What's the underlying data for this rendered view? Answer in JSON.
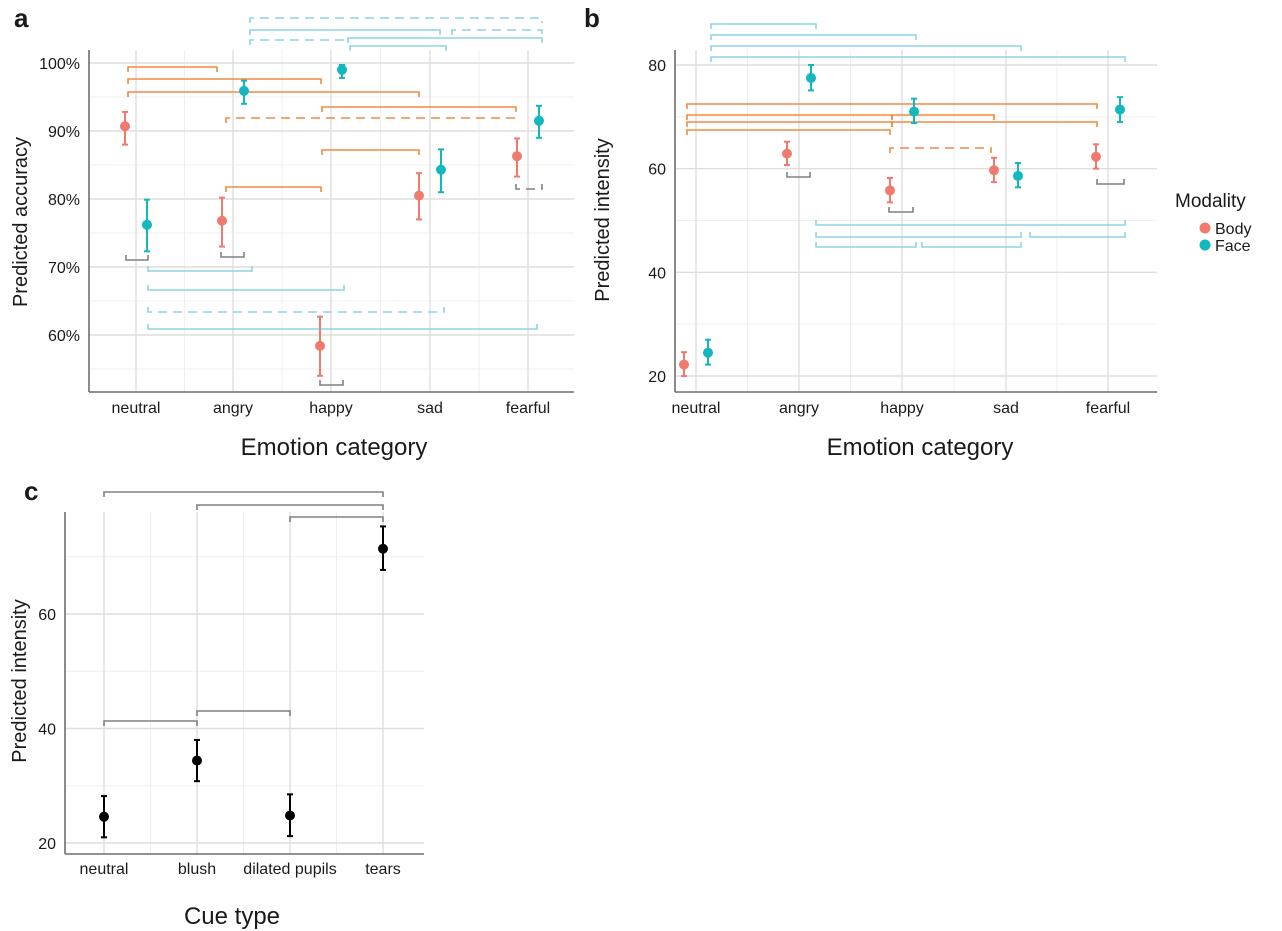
{
  "panels": {
    "a": {
      "label": "a"
    },
    "b": {
      "label": "b"
    },
    "c": {
      "label": "c"
    }
  },
  "legend": {
    "title": "Modality",
    "items": [
      {
        "label": "Body",
        "color": "#F07A6E"
      },
      {
        "label": "Face",
        "color": "#12B8BE"
      }
    ]
  },
  "colors": {
    "body": "#F07A6E",
    "face": "#12B8BE",
    "cue": "#000000",
    "bracket_body": "#F08A40",
    "bracket_face": "#8ED3E6",
    "bracket_within": "#808080"
  },
  "chart_data": [
    {
      "id": "a",
      "type": "scatter",
      "title": "",
      "xlabel": "Emotion category",
      "ylabel": "Predicted accuracy",
      "categories": [
        "neutral",
        "angry",
        "happy",
        "sad",
        "fearful"
      ],
      "ylim": [
        52,
        102
      ],
      "yticks": [
        60,
        70,
        80,
        90,
        100
      ],
      "ytick_labels": [
        "60%",
        "70%",
        "80%",
        "90%",
        "100%"
      ],
      "grid": true,
      "legend": "none",
      "series": [
        {
          "name": "Body",
          "values": [
            90.7,
            76.8,
            58.4,
            80.5,
            86.3
          ],
          "lower": [
            88.0,
            73.0,
            54.0,
            77.0,
            83.3
          ],
          "upper": [
            92.8,
            80.2,
            62.7,
            83.8,
            88.9
          ]
        },
        {
          "name": "Face",
          "values": [
            76.2,
            95.9,
            99.0,
            84.3,
            91.5
          ],
          "lower": [
            72.3,
            94.0,
            97.8,
            81.0,
            89.0
          ],
          "upper": [
            79.9,
            97.4,
            99.7,
            87.3,
            93.7
          ]
        }
      ]
    },
    {
      "id": "b",
      "type": "scatter",
      "title": "",
      "xlabel": "Emotion category",
      "ylabel": "Predicted intensity",
      "categories": [
        "neutral",
        "angry",
        "happy",
        "sad",
        "fearful"
      ],
      "ylim": [
        17,
        84
      ],
      "yticks": [
        20,
        40,
        60,
        80
      ],
      "ytick_labels": [
        "20",
        "40",
        "60",
        "80"
      ],
      "grid": true,
      "legend": "right",
      "series": [
        {
          "name": "Body",
          "values": [
            22.2,
            62.9,
            55.8,
            59.7,
            62.3
          ],
          "lower": [
            20.0,
            60.7,
            53.5,
            57.4,
            60.0
          ],
          "upper": [
            24.6,
            65.2,
            58.2,
            62.1,
            64.7
          ]
        },
        {
          "name": "Face",
          "values": [
            24.5,
            77.5,
            71.0,
            58.6,
            71.4
          ],
          "lower": [
            22.2,
            75.1,
            68.8,
            56.4,
            69.0
          ],
          "upper": [
            27.0,
            80.0,
            73.5,
            61.1,
            73.8
          ]
        }
      ]
    },
    {
      "id": "c",
      "type": "scatter",
      "title": "",
      "xlabel": "Cue type",
      "ylabel": "Predicted intensity",
      "categories": [
        "neutral",
        "blush",
        "dilated pupils",
        "tears"
      ],
      "ylim": [
        18,
        77
      ],
      "yticks": [
        20,
        40,
        60
      ],
      "ytick_labels": [
        "20",
        "40",
        "60"
      ],
      "grid": true,
      "legend": "none",
      "series": [
        {
          "name": "",
          "values": [
            24.6,
            34.4,
            24.8,
            71.4
          ],
          "lower": [
            21.0,
            30.8,
            21.2,
            67.7
          ],
          "upper": [
            28.2,
            38.0,
            28.5,
            75.3
          ]
        }
      ]
    }
  ]
}
